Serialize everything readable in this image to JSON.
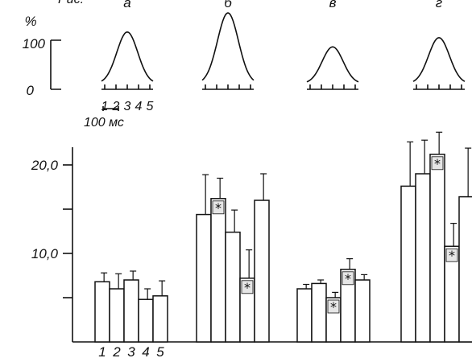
{
  "header": {
    "fig_label": "Рис.",
    "percent_sign": "%",
    "scale_top": "100",
    "scale_bottom": "0",
    "time_scale": "100 мс"
  },
  "chart_data": [
    {
      "type": "line",
      "description_role": "stimulus response profiles",
      "panels": [
        {
          "letter": "а",
          "peak": 73,
          "ticks": [
            "1",
            "2",
            "3",
            "4",
            "5"
          ]
        },
        {
          "letter": "б",
          "peak": 100,
          "ticks": []
        },
        {
          "letter": "в",
          "peak": 52,
          "ticks": []
        },
        {
          "letter": "г",
          "peak": 65,
          "ticks": []
        }
      ],
      "ylim": [
        0,
        100
      ]
    },
    {
      "type": "bar",
      "ylabel": "",
      "ytick_labels": [
        "10,0",
        "20,0"
      ],
      "ylim": [
        0,
        22
      ],
      "x_tick_labels": [
        "1",
        "2",
        "3",
        "4",
        "5"
      ],
      "groups": [
        {
          "letter": "а",
          "values": [
            6.8,
            6.0,
            7.0,
            4.8,
            5.2
          ],
          "errors": [
            1.0,
            1.7,
            1.0,
            1.2,
            1.7
          ],
          "marked": [
            false,
            false,
            false,
            false,
            false
          ]
        },
        {
          "letter": "б",
          "values": [
            14.4,
            16.2,
            12.4,
            7.2,
            16.0
          ],
          "errors": [
            4.5,
            2.3,
            2.5,
            3.2,
            3.0
          ],
          "marked": [
            false,
            true,
            false,
            true,
            false
          ]
        },
        {
          "letter": "в",
          "values": [
            6.0,
            6.6,
            5.0,
            8.2,
            7.0
          ],
          "errors": [
            0.5,
            0.4,
            0.6,
            1.2,
            0.6
          ],
          "marked": [
            false,
            false,
            true,
            true,
            false
          ]
        },
        {
          "letter": "г",
          "values": [
            17.6,
            19.0,
            21.2,
            10.8,
            16.4
          ],
          "errors": [
            5.0,
            3.8,
            2.5,
            2.6,
            5.5
          ],
          "marked": [
            false,
            false,
            true,
            true,
            false
          ]
        }
      ],
      "marker_symbol": "*"
    }
  ]
}
